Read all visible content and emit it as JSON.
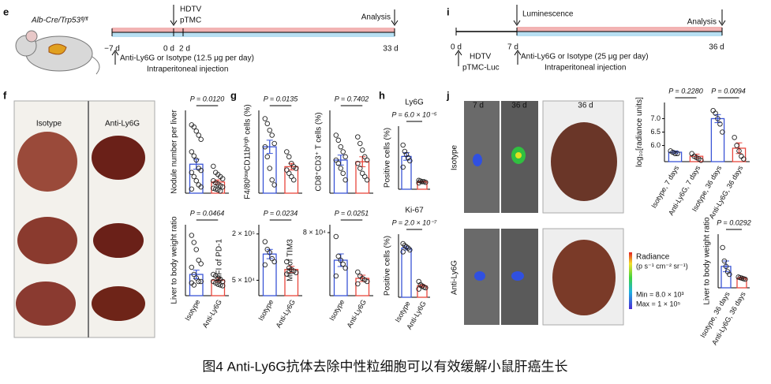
{
  "panel_letters": [
    "e",
    "f",
    "g",
    "h",
    "i",
    "j"
  ],
  "timeline_e": {
    "strain": "Alb-Cre/Trp53ᶠˡ/ᶠˡ",
    "days": [
      "−7 d",
      "0 d",
      "2 d",
      "33 d"
    ],
    "event1": "HDTV",
    "event2": "pTMC",
    "analysis": "Analysis",
    "treatment": "Anti-Ly6G or Isotype (12.5 μg per day)",
    "route": "Intraperitoneal injection"
  },
  "timeline_i": {
    "days": [
      "0 d",
      "7 d",
      "36 d"
    ],
    "imaging": "Luminescence",
    "analysis": "Analysis",
    "event1": "HDTV",
    "event2": "pTMC-Luc",
    "treatment": "Anti-Ly6G or Isotype (25 μg per day)",
    "route": "Intraperitoneal injection"
  },
  "photo_f": {
    "columns": [
      "Isotype",
      "Anti-Ly6G"
    ]
  },
  "photo_j": {
    "columns": [
      "7 d",
      "36 d",
      "36 d"
    ],
    "rows": [
      "Isotype",
      "Anti-Ly6G"
    ],
    "colorbar_title": "Radiance",
    "colorbar_unit": "(p s⁻¹ cm⁻² sr⁻¹)",
    "min": "Min = 8.0 × 10³",
    "max": "Max = 1 × 10⁵"
  },
  "chart_data": [
    {
      "type": "dotbar",
      "ylabel": "Nodule number per liver",
      "annotations": [
        "P = 0.0120"
      ],
      "categories": [
        null,
        null
      ],
      "colors": [
        "#3a55d6",
        "#e8463c"
      ],
      "ylim": [
        0,
        200
      ],
      "values": [
        70,
        27
      ],
      "errors": [
        12,
        5
      ],
      "points": [
        [
          165,
          160,
          150,
          140,
          130,
          100,
          90,
          80,
          60,
          55,
          50,
          40,
          30,
          20,
          15,
          10
        ],
        [
          65,
          50,
          45,
          40,
          35,
          30,
          25,
          22,
          18,
          15,
          12,
          10,
          8,
          5
        ]
      ]
    },
    {
      "type": "dotbar",
      "ylabel": "Liver to body weight ratio",
      "annotations": [
        "P = 0.0464"
      ],
      "categories": [
        "Isotype",
        "Anti-Ly6G"
      ],
      "colors": [
        "#3a55d6",
        "#e8463c"
      ],
      "ylim": [
        0,
        10
      ],
      "values": [
        3.0,
        2.2
      ],
      "errors": [
        0.6,
        0.3
      ],
      "points": [
        [
          8.5,
          7.5,
          6.5,
          5,
          4.5,
          4,
          3,
          2.5,
          2,
          2,
          1.8,
          1.5
        ],
        [
          3,
          2.8,
          2.5,
          2.3,
          2,
          2,
          1.8,
          1.6,
          1.5,
          1.4
        ]
      ]
    },
    {
      "type": "dotbar",
      "ylabel": "F4/80ˡᵒʷCD11bʰⁱᵍʰ cells (%)",
      "annotations": [
        "P = 0.0135"
      ],
      "categories": [
        null,
        null
      ],
      "colors": [
        "#3a55d6",
        "#e8463c"
      ],
      "ylim": [
        0,
        50
      ],
      "values": [
        28,
        16
      ],
      "errors": [
        4,
        2
      ],
      "points": [
        [
          45,
          42,
          38,
          35,
          30,
          28,
          22,
          15,
          8,
          5
        ],
        [
          25,
          22,
          18,
          16,
          15,
          14,
          12,
          10,
          8
        ]
      ]
    },
    {
      "type": "dotbar",
      "ylabel": "CD8⁺CD3⁺ T cells (%)",
      "annotations": [
        "P = 0.7402"
      ],
      "categories": [
        null,
        null
      ],
      "colors": [
        "#3a55d6",
        "#e8463c"
      ],
      "ylim": [
        0,
        50
      ],
      "values": [
        20,
        19
      ],
      "errors": [
        3,
        3
      ],
      "points": [
        [
          35,
          32,
          28,
          25,
          22,
          20,
          18,
          15,
          12,
          8
        ],
        [
          34,
          30,
          26,
          22,
          20,
          18,
          15,
          12,
          10,
          8
        ]
      ]
    },
    {
      "type": "dotbar",
      "ylabel": "MFI of PD-1",
      "annotations": [
        "P = 0.0234"
      ],
      "categories": [
        "Isotype",
        "Anti-Ly6G"
      ],
      "colors": [
        "#3a55d6",
        "#e8463c"
      ],
      "ylim": [
        0,
        230000
      ],
      "yticks": [
        {
          "value": 50000,
          "label": "5 × 10⁴"
        },
        {
          "value": 200000,
          "label": "2 × 10⁵"
        }
      ],
      "values": [
        135000,
        85000
      ],
      "errors": [
        15000,
        10000
      ],
      "points": [
        [
          175000,
          150000,
          140000,
          120000,
          110000,
          100000
        ],
        [
          110000,
          90000,
          85000,
          80000,
          75000,
          70000
        ]
      ]
    },
    {
      "type": "dotbar",
      "ylabel": "MFI of TIM3",
      "annotations": [
        "P = 0.0251"
      ],
      "categories": [
        "Isotype",
        "Anti-Ly6G"
      ],
      "colors": [
        "#3a55d6",
        "#e8463c"
      ],
      "ylim": [
        0,
        90000
      ],
      "yticks": [
        {
          "value": 80000,
          "label": "8 × 10⁴"
        }
      ],
      "values": [
        45000,
        22000
      ],
      "errors": [
        8000,
        4000
      ],
      "points": [
        [
          75000,
          50000,
          45000,
          40000,
          35000,
          25000
        ],
        [
          30000,
          25000,
          22000,
          20000,
          18000,
          15000
        ]
      ]
    },
    {
      "type": "dotbar",
      "title": "Ly6G",
      "ylabel": "Positive cells (%)",
      "annotations": [
        "P = 6.0 × 10⁻⁵"
      ],
      "categories": [
        null,
        null
      ],
      "colors": [
        "#3a55d6",
        "#e8463c"
      ],
      "ylim": [
        0,
        100
      ],
      "values": [
        52,
        12
      ],
      "errors": [
        6,
        1
      ],
      "points": [
        [
          70,
          60,
          55,
          50,
          45,
          35
        ],
        [
          14,
          13,
          12,
          12,
          11,
          10
        ]
      ]
    },
    {
      "type": "dotbar",
      "title": "Ki-67",
      "ylabel": "Positive cells (%)",
      "annotations": [
        "P = 2.0 × 10⁻⁷"
      ],
      "categories": [
        "Isotype",
        "Anti-Ly6G"
      ],
      "colors": [
        "#3a55d6",
        "#e8463c"
      ],
      "ylim": [
        0,
        100
      ],
      "values": [
        78,
        18
      ],
      "errors": [
        3,
        2
      ],
      "points": [
        [
          85,
          82,
          80,
          78,
          75,
          72
        ],
        [
          25,
          20,
          18,
          16,
          15,
          13
        ]
      ]
    },
    {
      "type": "dotbar",
      "ylabel": "log₁₀[radiance units]",
      "annotations": [
        "P = 0.2280",
        "P = 0.0094"
      ],
      "categories": [
        "Isotype, 7 days",
        "Anti-Ly6G, 7 days",
        "Isotype, 36 days",
        "Anti-Ly6G, 36 days"
      ],
      "colors": [
        "#3a55d6",
        "#e8463c",
        "#3a55d6",
        "#e8463c"
      ],
      "ylim": [
        5.4,
        7.6
      ],
      "yticks": [
        {
          "value": 6,
          "label": "6.0"
        },
        6.5,
        {
          "value": 7,
          "label": "7.0"
        }
      ],
      "values": [
        5.75,
        5.6,
        7.0,
        5.9
      ],
      "errors": [
        0.05,
        0.08,
        0.15,
        0.2
      ],
      "points": [
        [
          5.8,
          5.75,
          5.7,
          5.7
        ],
        [
          5.7,
          5.6,
          5.55,
          5.5,
          5.45
        ],
        [
          7.3,
          7.2,
          7.0,
          6.8,
          6.5
        ],
        [
          6.3,
          6.0,
          5.8,
          5.6,
          5.5
        ]
      ]
    },
    {
      "type": "dotbar",
      "ylabel": "Liver to body weight ratio",
      "annotations": [
        "P = 0.0292"
      ],
      "categories": [
        "Isotype, 36 days",
        "Anti-Ly6G, 36 days"
      ],
      "colors": [
        "#3a55d6",
        "#e8463c"
      ],
      "ylim": [
        0,
        10
      ],
      "values": [
        4,
        1.8
      ],
      "errors": [
        1,
        0.2
      ],
      "points": [
        [
          7.5,
          5,
          4,
          3,
          2.5
        ],
        [
          2,
          1.9,
          1.8,
          1.7,
          1.6
        ]
      ]
    }
  ],
  "caption": "图4 Anti-Ly6G抗体去除中性粒细胞可以有效缓解小鼠肝癌生长"
}
